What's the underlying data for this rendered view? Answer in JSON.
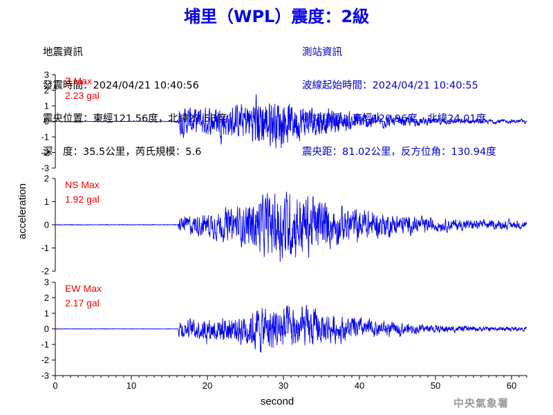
{
  "title": "埔里（WPL）震度：2級",
  "earthquake_info": {
    "heading": "地震資訊",
    "origin_time": "發震時間：2024/04/21 10:40:56",
    "epicenter": "震央位置：東經121.56度，北緯23.53度",
    "depth_magnitude": "深　度：35.5公里，芮氏規模：5.6"
  },
  "station_info": {
    "heading": "測站資訊",
    "arrival_time": "波線起始時間：2024/04/21 10:40:55",
    "location": "測站位置：東經120.96度，北緯24.01度",
    "distance_azimuth": "震央距：81.02公里，反方位角：130.94度"
  },
  "credit": "中央氣象署",
  "colors": {
    "trace": "#0000ee",
    "label": "#ff0000",
    "title": "#0000ee",
    "station_text": "#0000cc"
  },
  "chart_data": {
    "type": "line",
    "xlabel": "second",
    "ylabel": "acceleration",
    "xlim": [
      0,
      62
    ],
    "x_ticks": [
      0,
      10,
      20,
      30,
      40,
      50,
      60
    ],
    "grid": false,
    "panels": [
      {
        "name": "Z Max",
        "peak_label": "2.23 gal",
        "peak": 2.23,
        "ylim": [
          -3,
          3
        ],
        "y_ticks": [
          -3,
          -2,
          -1,
          0,
          1,
          2,
          3
        ],
        "onset_s": 16.2,
        "envelope": [
          [
            16.2,
            0.9
          ],
          [
            20,
            1.0
          ],
          [
            24,
            1.1
          ],
          [
            27,
            1.9
          ],
          [
            30,
            1.5
          ],
          [
            33,
            1.1
          ],
          [
            38,
            0.7
          ],
          [
            45,
            0.35
          ],
          [
            52,
            0.2
          ],
          [
            62,
            0.12
          ]
        ]
      },
      {
        "name": "NS Max",
        "peak_label": "1.92 gal",
        "peak": 1.92,
        "ylim": [
          -2,
          2
        ],
        "y_ticks": [
          -2,
          -1,
          0,
          1,
          2
        ],
        "onset_s": 16.2,
        "envelope": [
          [
            16.2,
            0.35
          ],
          [
            20,
            0.55
          ],
          [
            24,
            0.8
          ],
          [
            27,
            1.3
          ],
          [
            30,
            1.6
          ],
          [
            33,
            1.4
          ],
          [
            37,
            0.9
          ],
          [
            42,
            0.6
          ],
          [
            48,
            0.35
          ],
          [
            55,
            0.22
          ],
          [
            62,
            0.18
          ]
        ]
      },
      {
        "name": "EW Max",
        "peak_label": "2.17 gal",
        "peak": 2.17,
        "ylim": [
          -3,
          3
        ],
        "y_ticks": [
          -3,
          -2,
          -1,
          0,
          1,
          2,
          3
        ],
        "onset_s": 16.2,
        "envelope": [
          [
            16.2,
            0.55
          ],
          [
            20,
            0.8
          ],
          [
            24,
            1.0
          ],
          [
            27,
            1.5
          ],
          [
            30,
            1.6
          ],
          [
            33,
            1.3
          ],
          [
            37,
            0.9
          ],
          [
            42,
            0.55
          ],
          [
            48,
            0.3
          ],
          [
            55,
            0.18
          ],
          [
            62,
            0.12
          ]
        ]
      }
    ]
  }
}
